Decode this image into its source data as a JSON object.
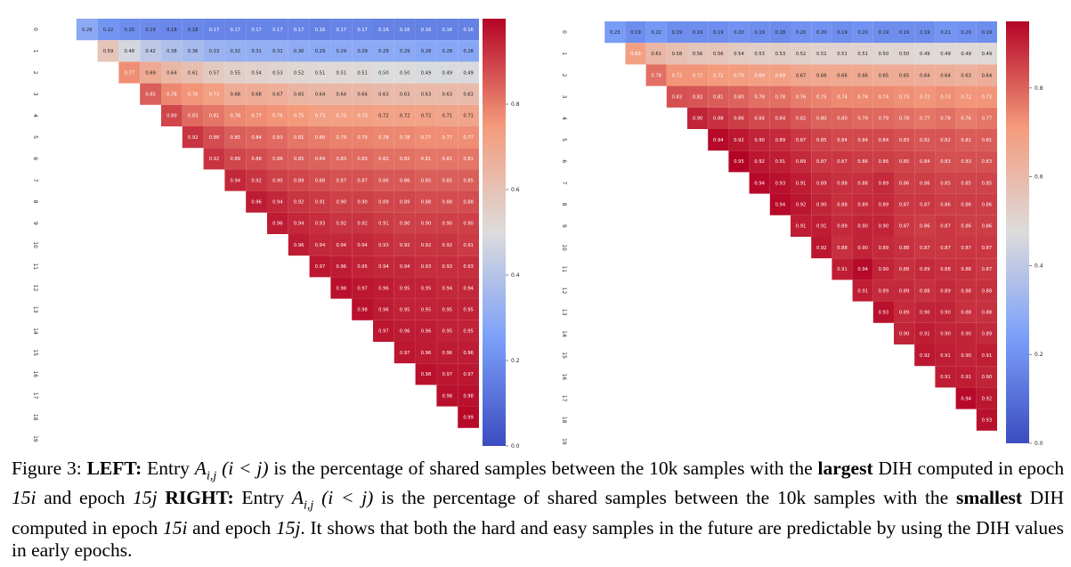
{
  "colors": {
    "scale": [
      "#3b4cc0",
      "#dddcdc",
      "#b40426"
    ]
  },
  "chart_data": [
    {
      "type": "heatmap",
      "panel": "left",
      "n": 20,
      "tick_labels": [
        "0",
        "1",
        "2",
        "3",
        "4",
        "5",
        "6",
        "7",
        "8",
        "9",
        "10",
        "11",
        "12",
        "13",
        "14",
        "15",
        "16",
        "17",
        "18",
        "19"
      ],
      "colorbar": {
        "min": 0.0,
        "max": 1.0,
        "ticks": [
          "0.0",
          "0.2",
          "0.4",
          "0.6",
          "0.8"
        ]
      },
      "rows": [
        [
          0.29,
          0.22,
          0.2,
          0.19,
          0.18,
          0.18,
          0.17,
          0.17,
          0.17,
          0.17,
          0.17,
          0.16,
          0.17,
          0.17,
          0.16,
          0.16,
          0.16,
          0.16,
          0.16
        ],
        [
          0.59,
          0.48,
          0.42,
          0.38,
          0.36,
          0.33,
          0.32,
          0.31,
          0.31,
          0.3,
          0.29,
          0.29,
          0.29,
          0.29,
          0.29,
          0.28,
          0.28,
          0.28
        ],
        [
          0.77,
          0.69,
          0.64,
          0.61,
          0.57,
          0.55,
          0.54,
          0.53,
          0.52,
          0.51,
          0.51,
          0.51,
          0.5,
          0.5,
          0.49,
          0.49,
          0.49
        ],
        [
          0.85,
          0.78,
          0.76,
          0.73,
          0.68,
          0.68,
          0.67,
          0.65,
          0.64,
          0.64,
          0.64,
          0.63,
          0.63,
          0.63,
          0.63,
          0.63
        ],
        [
          0.89,
          0.83,
          0.81,
          0.78,
          0.77,
          0.76,
          0.75,
          0.73,
          0.73,
          0.73,
          0.72,
          0.72,
          0.72,
          0.71,
          0.71
        ],
        [
          0.92,
          0.88,
          0.85,
          0.84,
          0.83,
          0.81,
          0.8,
          0.79,
          0.79,
          0.78,
          0.78,
          0.77,
          0.77,
          0.77
        ],
        [
          0.92,
          0.89,
          0.88,
          0.86,
          0.85,
          0.84,
          0.83,
          0.83,
          0.82,
          0.82,
          0.81,
          0.81,
          0.81
        ],
        [
          0.94,
          0.92,
          0.9,
          0.89,
          0.88,
          0.87,
          0.87,
          0.86,
          0.86,
          0.85,
          0.85,
          0.85
        ],
        [
          0.96,
          0.94,
          0.92,
          0.91,
          0.9,
          0.9,
          0.89,
          0.89,
          0.88,
          0.88,
          0.88
        ],
        [
          0.96,
          0.94,
          0.93,
          0.92,
          0.92,
          0.91,
          0.9,
          0.9,
          0.9,
          0.9
        ],
        [
          0.96,
          0.94,
          0.94,
          0.94,
          0.93,
          0.92,
          0.92,
          0.92,
          0.91
        ],
        [
          0.97,
          0.96,
          0.95,
          0.94,
          0.94,
          0.93,
          0.93,
          0.93
        ],
        [
          0.98,
          0.97,
          0.96,
          0.95,
          0.95,
          0.94,
          0.94
        ],
        [
          0.98,
          0.96,
          0.95,
          0.95,
          0.95,
          0.95
        ],
        [
          0.97,
          0.96,
          0.96,
          0.95,
          0.95
        ],
        [
          0.97,
          0.96,
          0.96,
          0.96
        ],
        [
          0.98,
          0.97,
          0.97
        ],
        [
          0.98,
          0.98
        ],
        [
          0.99
        ]
      ]
    },
    {
      "type": "heatmap",
      "panel": "right",
      "n": 20,
      "tick_labels": [
        "0",
        "1",
        "2",
        "3",
        "4",
        "5",
        "6",
        "7",
        "8",
        "9",
        "10",
        "11",
        "12",
        "13",
        "14",
        "15",
        "16",
        "17",
        "18",
        "19"
      ],
      "colorbar": {
        "min": 0.0,
        "max": 0.95,
        "ticks": [
          "0.0",
          "0.2",
          "0.4",
          "0.6",
          "0.8"
        ]
      },
      "rows": [
        [
          0.23,
          0.19,
          0.22,
          0.19,
          0.19,
          0.19,
          0.2,
          0.19,
          0.18,
          0.2,
          0.2,
          0.19,
          0.2,
          0.19,
          0.19,
          0.19,
          0.21,
          0.2,
          0.19
        ],
        [
          0.69,
          0.61,
          0.58,
          0.56,
          0.56,
          0.54,
          0.53,
          0.53,
          0.52,
          0.51,
          0.51,
          0.51,
          0.5,
          0.5,
          0.49,
          0.49,
          0.49,
          0.49
        ],
        [
          0.78,
          0.72,
          0.72,
          0.71,
          0.7,
          0.69,
          0.69,
          0.67,
          0.66,
          0.66,
          0.66,
          0.65,
          0.65,
          0.64,
          0.64,
          0.63,
          0.64
        ],
        [
          0.83,
          0.82,
          0.81,
          0.8,
          0.78,
          0.78,
          0.76,
          0.75,
          0.74,
          0.74,
          0.74,
          0.73,
          0.72,
          0.73,
          0.72,
          0.72
        ],
        [
          0.9,
          0.88,
          0.86,
          0.84,
          0.84,
          0.82,
          0.8,
          0.8,
          0.79,
          0.79,
          0.78,
          0.77,
          0.78,
          0.76,
          0.77
        ],
        [
          0.94,
          0.92,
          0.9,
          0.89,
          0.87,
          0.85,
          0.84,
          0.84,
          0.84,
          0.83,
          0.82,
          0.82,
          0.81,
          0.81
        ],
        [
          0.95,
          0.92,
          0.91,
          0.89,
          0.87,
          0.87,
          0.86,
          0.86,
          0.85,
          0.84,
          0.83,
          0.83,
          0.83
        ],
        [
          0.94,
          0.93,
          0.91,
          0.89,
          0.88,
          0.88,
          0.89,
          0.86,
          0.86,
          0.85,
          0.85,
          0.85
        ],
        [
          0.94,
          0.92,
          0.9,
          0.88,
          0.89,
          0.89,
          0.87,
          0.87,
          0.86,
          0.86,
          0.86
        ],
        [
          0.91,
          0.91,
          0.89,
          0.9,
          0.9,
          0.87,
          0.86,
          0.87,
          0.86,
          0.86
        ],
        [
          0.92,
          0.88,
          0.9,
          0.89,
          0.88,
          0.87,
          0.87,
          0.87,
          0.87
        ],
        [
          0.91,
          0.94,
          0.9,
          0.88,
          0.89,
          0.88,
          0.88,
          0.87
        ],
        [
          0.91,
          0.89,
          0.89,
          0.88,
          0.89,
          0.88,
          0.88
        ],
        [
          0.93,
          0.89,
          0.9,
          0.9,
          0.88,
          0.88
        ],
        [
          0.9,
          0.91,
          0.9,
          0.9,
          0.89
        ],
        [
          0.92,
          0.91,
          0.9,
          0.91
        ],
        [
          0.91,
          0.91,
          0.9
        ],
        [
          0.94,
          0.92
        ],
        [
          0.93
        ]
      ]
    }
  ],
  "caption": {
    "label": "Figure 3:",
    "left_tag": "LEFT:",
    "left_text_1": "Entry",
    "math_entry": "A",
    "math_sub": "i,j",
    "math_cond": "(i < j)",
    "left_text_2": "is the percentage of shared samples between the 10k samples with the",
    "largest": "largest",
    "left_text_3": "DIH computed in epoch",
    "epoch_i": "15i",
    "and_epoch": "and epoch",
    "epoch_j": "15j",
    "right_tag": "RIGHT:",
    "right_text_1": "Entry",
    "right_text_2": "is the percentage of shared samples between the 10k samples with the",
    "smallest": "smallest",
    "right_text_3": "DIH computed in epoch",
    "end_text": ". It shows that both the hard and easy samples in the future are predictable by using the DIH values in early epochs."
  }
}
